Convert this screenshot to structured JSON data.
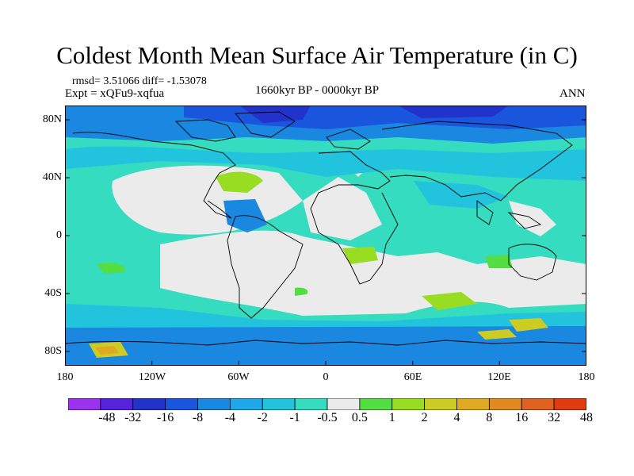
{
  "title": "Coldest Month Mean Surface Air Temperature (in C)",
  "stats": "rmsd= 3.51066  diff= -1.53078",
  "experiment": "Expt = xQFu9-xqfua",
  "period": "1660kyr BP - 0000kyr BP",
  "season": "ANN",
  "lat_ticks": [
    "80N",
    "40N",
    "0",
    "40S",
    "80S"
  ],
  "lon_ticks": [
    "180",
    "120W",
    "60W",
    "0",
    "60E",
    "120E",
    "180"
  ],
  "colorbar": {
    "labels": [
      "-48",
      "-32",
      "-16",
      "-8",
      "-4",
      "-2",
      "-1",
      "-0.5",
      "0.5",
      "1",
      "2",
      "4",
      "8",
      "16",
      "32",
      "48"
    ],
    "colors": [
      "#9933ee",
      "#5522dd",
      "#2233cc",
      "#1a55dd",
      "#1a88e0",
      "#1ea8ea",
      "#22c4dd",
      "#35dcc0",
      "#ebebeb",
      "#55dd44",
      "#99dd22",
      "#cccc22",
      "#ddaa22",
      "#e08a22",
      "#e06222",
      "#e03a11"
    ]
  },
  "palette": {
    "ocean_base": "#35dcc0",
    "land_white": "#ebebeb"
  }
}
